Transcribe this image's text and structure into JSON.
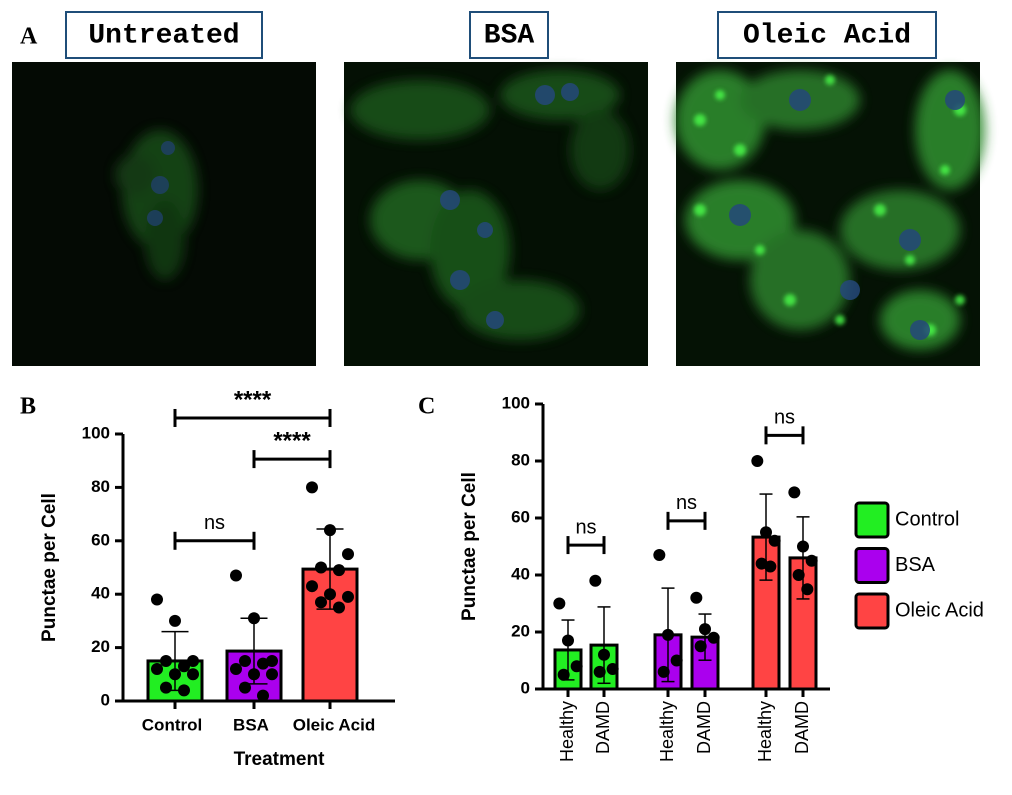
{
  "images_panel": {
    "label": "A",
    "titles": [
      "Untreated",
      "BSA",
      "Oleic Acid"
    ]
  },
  "chart_data": [
    {
      "type": "bar",
      "panel_label": "B",
      "x_label": "Treatment",
      "y_label": "Punctae per Cell",
      "categories": [
        "Control",
        "BSA",
        "Oleic Acid"
      ],
      "values": [
        15,
        18.7,
        49.4
      ],
      "errors": [
        11,
        12.3,
        15
      ],
      "colors": [
        "#22ee22",
        "#aa00ee",
        "#ff4444"
      ],
      "points": [
        [
          38,
          30,
          15,
          15,
          13,
          12,
          10,
          10,
          5,
          4
        ],
        [
          47,
          31,
          15,
          15,
          14,
          12,
          10,
          10,
          5,
          2
        ],
        [
          80,
          64,
          55,
          50,
          49,
          43,
          40,
          39,
          37,
          35
        ]
      ],
      "ylim": [
        0,
        100
      ],
      "yticks": [
        0,
        20,
        40,
        60,
        80,
        100
      ],
      "annotations": [
        {
          "text": "ns",
          "from": 0,
          "to": 1,
          "y": 60
        },
        {
          "text": "****",
          "from": 1,
          "to": 2,
          "y": 90.6
        },
        {
          "text": "****",
          "from": 0,
          "to": 2,
          "y": 106
        }
      ]
    },
    {
      "type": "bar",
      "panel_label": "C",
      "y_label": "Punctae per Cell",
      "categories": [
        "Healthy",
        "DAMD"
      ],
      "series": [
        {
          "name": "Control",
          "color": "#22ee22",
          "values": [
            13.7,
            15.4
          ],
          "errors": [
            10.5,
            13.4
          ],
          "points": [
            [
              30,
              17,
              8,
              5
            ],
            [
              38,
              12,
              7,
              6
            ]
          ]
        },
        {
          "name": "BSA",
          "color": "#aa00ee",
          "values": [
            19,
            18.2
          ],
          "errors": [
            16.4,
            8.1
          ],
          "points": [
            [
              47,
              19,
              10,
              6
            ],
            [
              32,
              21,
              18,
              15
            ]
          ]
        },
        {
          "name": "Oleic Acid",
          "color": "#ff4444",
          "values": [
            53.3,
            46
          ],
          "errors": [
            15.1,
            14.4
          ],
          "points": [
            [
              80,
              55,
              52,
              44,
              43
            ],
            [
              69,
              50,
              45,
              40,
              35
            ]
          ]
        }
      ],
      "ylim": [
        0,
        100
      ],
      "yticks": [
        0,
        20,
        40,
        60,
        80,
        100
      ],
      "annotations": [
        {
          "text": "ns",
          "from": 0,
          "to": 1,
          "y": 50.5
        },
        {
          "text": "ns",
          "from": 2,
          "to": 3,
          "y": 59
        },
        {
          "text": "ns",
          "from": 4,
          "to": 5,
          "y": 89
        }
      ]
    }
  ]
}
